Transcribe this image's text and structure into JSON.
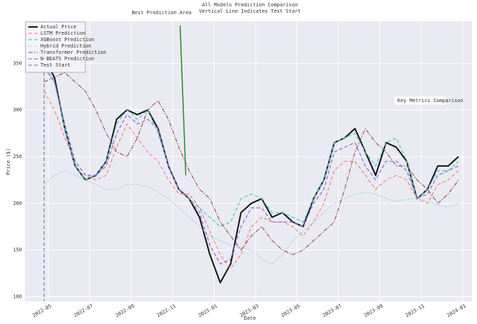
{
  "chart_data": {
    "type": "line",
    "title": "All Models Prediction Comparison",
    "subtitle": "Vertical Line Indicates Test Start",
    "xlabel": "Date",
    "ylabel": "Price ($)",
    "x": [
      -0.2,
      0.3,
      0.8,
      1.3,
      1.8,
      2.3,
      2.8,
      3.3,
      3.8,
      4.3,
      4.8,
      5.3,
      5.8,
      6.3,
      6.8,
      7.3,
      7.8,
      8.3,
      8.8,
      9.3,
      9.8,
      10.3,
      10.8,
      11.3,
      11.8,
      12.3,
      12.8,
      13.3,
      13.8,
      14.3,
      14.8,
      15.3,
      15.8,
      16.3,
      16.8,
      17.3,
      17.8,
      18.3,
      18.8,
      19.3,
      19.8
    ],
    "series": [
      {
        "name": "Actual Price",
        "color": "#111111",
        "style": "solid",
        "width": 2,
        "values": [
          355,
          335,
          280,
          240,
          225,
          230,
          245,
          290,
          300,
          295,
          300,
          280,
          240,
          215,
          205,
          185,
          145,
          115,
          135,
          190,
          200,
          205,
          185,
          190,
          180,
          175,
          205,
          225,
          265,
          270,
          280,
          255,
          230,
          265,
          260,
          245,
          205,
          215,
          240,
          240,
          250
        ]
      },
      {
        "name": "LSTM Prediction",
        "color": "#ff6b6b",
        "style": "dashed",
        "width": 1,
        "values": [
          320,
          300,
          270,
          245,
          230,
          225,
          230,
          260,
          285,
          270,
          255,
          245,
          225,
          210,
          210,
          195,
          170,
          145,
          130,
          145,
          175,
          185,
          180,
          180,
          175,
          165,
          180,
          200,
          235,
          245,
          245,
          230,
          215,
          225,
          230,
          225,
          205,
          200,
          220,
          225,
          235
        ]
      },
      {
        "name": "XGBoost Prediction",
        "color": "#4ecdc4",
        "style": "dashed",
        "width": 1.3,
        "values": [
          350,
          330,
          280,
          240,
          225,
          230,
          245,
          285,
          300,
          290,
          300,
          275,
          240,
          215,
          205,
          195,
          185,
          175,
          180,
          205,
          210,
          205,
          190,
          190,
          185,
          180,
          205,
          225,
          265,
          270,
          275,
          255,
          240,
          265,
          270,
          245,
          205,
          215,
          235,
          235,
          245
        ]
      },
      {
        "name": "Hybrid Prediction",
        "color": "#87ceeb",
        "style": "dotted",
        "width": 1.3,
        "values": [
          220,
          230,
          235,
          230,
          225,
          220,
          215,
          215,
          220,
          220,
          218,
          212,
          205,
          195,
          185,
          175,
          165,
          160,
          155,
          152,
          150,
          140,
          135,
          145,
          160,
          170,
          180,
          190,
          200,
          205,
          210,
          212,
          210,
          205,
          202,
          204,
          206,
          202,
          198,
          196,
          200
        ]
      },
      {
        "name": "Transformer Prediction",
        "color": "#8b3a3a",
        "style": "dashdot",
        "width": 1,
        "values": [
          330,
          335,
          340,
          330,
          320,
          300,
          275,
          255,
          250,
          270,
          300,
          310,
          290,
          260,
          235,
          215,
          205,
          180,
          165,
          150,
          165,
          175,
          160,
          150,
          145,
          150,
          160,
          170,
          180,
          215,
          255,
          280,
          265,
          255,
          240,
          240,
          225,
          215,
          200,
          210,
          225
        ]
      },
      {
        "name": "N-BEATS Prediction",
        "color": "#9370db",
        "style": "dashed",
        "width": 1.3,
        "values": [
          345,
          330,
          285,
          245,
          230,
          230,
          240,
          275,
          295,
          285,
          290,
          280,
          240,
          215,
          205,
          190,
          155,
          135,
          140,
          175,
          195,
          195,
          180,
          180,
          180,
          175,
          200,
          215,
          255,
          260,
          265,
          240,
          225,
          245,
          245,
          235,
          205,
          210,
          230,
          235,
          240
        ]
      }
    ],
    "test_start": {
      "name": "Test Start",
      "x": -0.2,
      "color": "#6a6a9a"
    },
    "annotations": [
      {
        "text": "Best Prediction Area",
        "x": 6.5,
        "y": 230,
        "color": "#228b22"
      },
      {
        "text": "Key Metrics Comparison",
        "x": 16.85,
        "y": 310
      }
    ],
    "xlim": [
      -1.13,
      20.45
    ],
    "ylim": [
      95,
      395
    ],
    "xticks": [
      {
        "value": 0,
        "label": "2022-05"
      },
      {
        "value": 2,
        "label": "2022-07"
      },
      {
        "value": 4,
        "label": "2022-09"
      },
      {
        "value": 6,
        "label": "2022-11"
      },
      {
        "value": 8,
        "label": "2023-01"
      },
      {
        "value": 10,
        "label": "2023-03"
      },
      {
        "value": 12,
        "label": "2023-05"
      },
      {
        "value": 14,
        "label": "2023-07"
      },
      {
        "value": 16,
        "label": "2023-09"
      },
      {
        "value": 18,
        "label": "2023-11"
      },
      {
        "value": 20,
        "label": "2024-01"
      }
    ],
    "yticks": [
      100,
      150,
      200,
      250,
      300,
      350
    ],
    "grid": true,
    "legend": "upper left",
    "background": "#eaeaf2"
  }
}
